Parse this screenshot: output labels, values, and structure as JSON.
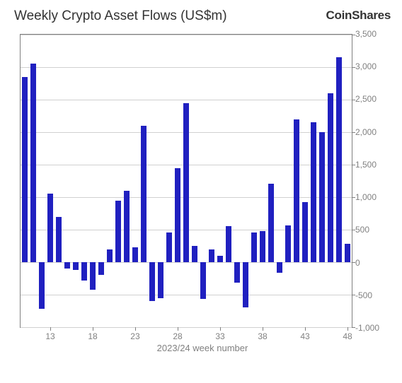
{
  "header": {
    "title": "Weekly Crypto Asset Flows (US$m)",
    "brand": "CoinShares"
  },
  "chart": {
    "type": "bar",
    "x_axis_title": "2023/24 week number",
    "x_start": 10,
    "x_end": 48,
    "x_ticks": [
      13,
      18,
      23,
      28,
      33,
      38,
      43,
      48
    ],
    "ylim": [
      -1000,
      3500
    ],
    "y_ticks": [
      -1000,
      -500,
      0,
      500,
      1000,
      1500,
      2000,
      2500,
      3000,
      3500
    ],
    "grid_color": "#d0d0d0",
    "axis_color": "#808080",
    "bar_color": "#2020c0",
    "bar_width_ratio": 0.72,
    "background_color": "#ffffff",
    "title_fontsize": 19,
    "tick_fontsize": 12,
    "axis_title_fontsize": 13,
    "series": [
      {
        "week": 10,
        "value": 2850
      },
      {
        "week": 11,
        "value": 3050
      },
      {
        "week": 12,
        "value": -720
      },
      {
        "week": 13,
        "value": 1050
      },
      {
        "week": 14,
        "value": 700
      },
      {
        "week": 15,
        "value": -100
      },
      {
        "week": 16,
        "value": -120
      },
      {
        "week": 17,
        "value": -280
      },
      {
        "week": 18,
        "value": -420
      },
      {
        "week": 19,
        "value": -200
      },
      {
        "week": 20,
        "value": 200
      },
      {
        "week": 21,
        "value": 950
      },
      {
        "week": 22,
        "value": 1100
      },
      {
        "week": 23,
        "value": 230
      },
      {
        "week": 24,
        "value": 2100
      },
      {
        "week": 25,
        "value": -600
      },
      {
        "week": 26,
        "value": -550
      },
      {
        "week": 27,
        "value": 460
      },
      {
        "week": 28,
        "value": 1450
      },
      {
        "week": 29,
        "value": 2450
      },
      {
        "week": 30,
        "value": 250
      },
      {
        "week": 31,
        "value": -560
      },
      {
        "week": 32,
        "value": 200
      },
      {
        "week": 33,
        "value": 100
      },
      {
        "week": 34,
        "value": 550
      },
      {
        "week": 35,
        "value": -320
      },
      {
        "week": 36,
        "value": -700
      },
      {
        "week": 37,
        "value": 460
      },
      {
        "week": 38,
        "value": 480
      },
      {
        "week": 39,
        "value": 1210
      },
      {
        "week": 40,
        "value": -160
      },
      {
        "week": 41,
        "value": 570
      },
      {
        "week": 42,
        "value": 2200
      },
      {
        "week": 43,
        "value": 920
      },
      {
        "week": 44,
        "value": 2150
      },
      {
        "week": 45,
        "value": 2000
      },
      {
        "week": 46,
        "value": 2600
      },
      {
        "week": 47,
        "value": 3150
      },
      {
        "week": 48,
        "value": 280
      }
    ]
  }
}
